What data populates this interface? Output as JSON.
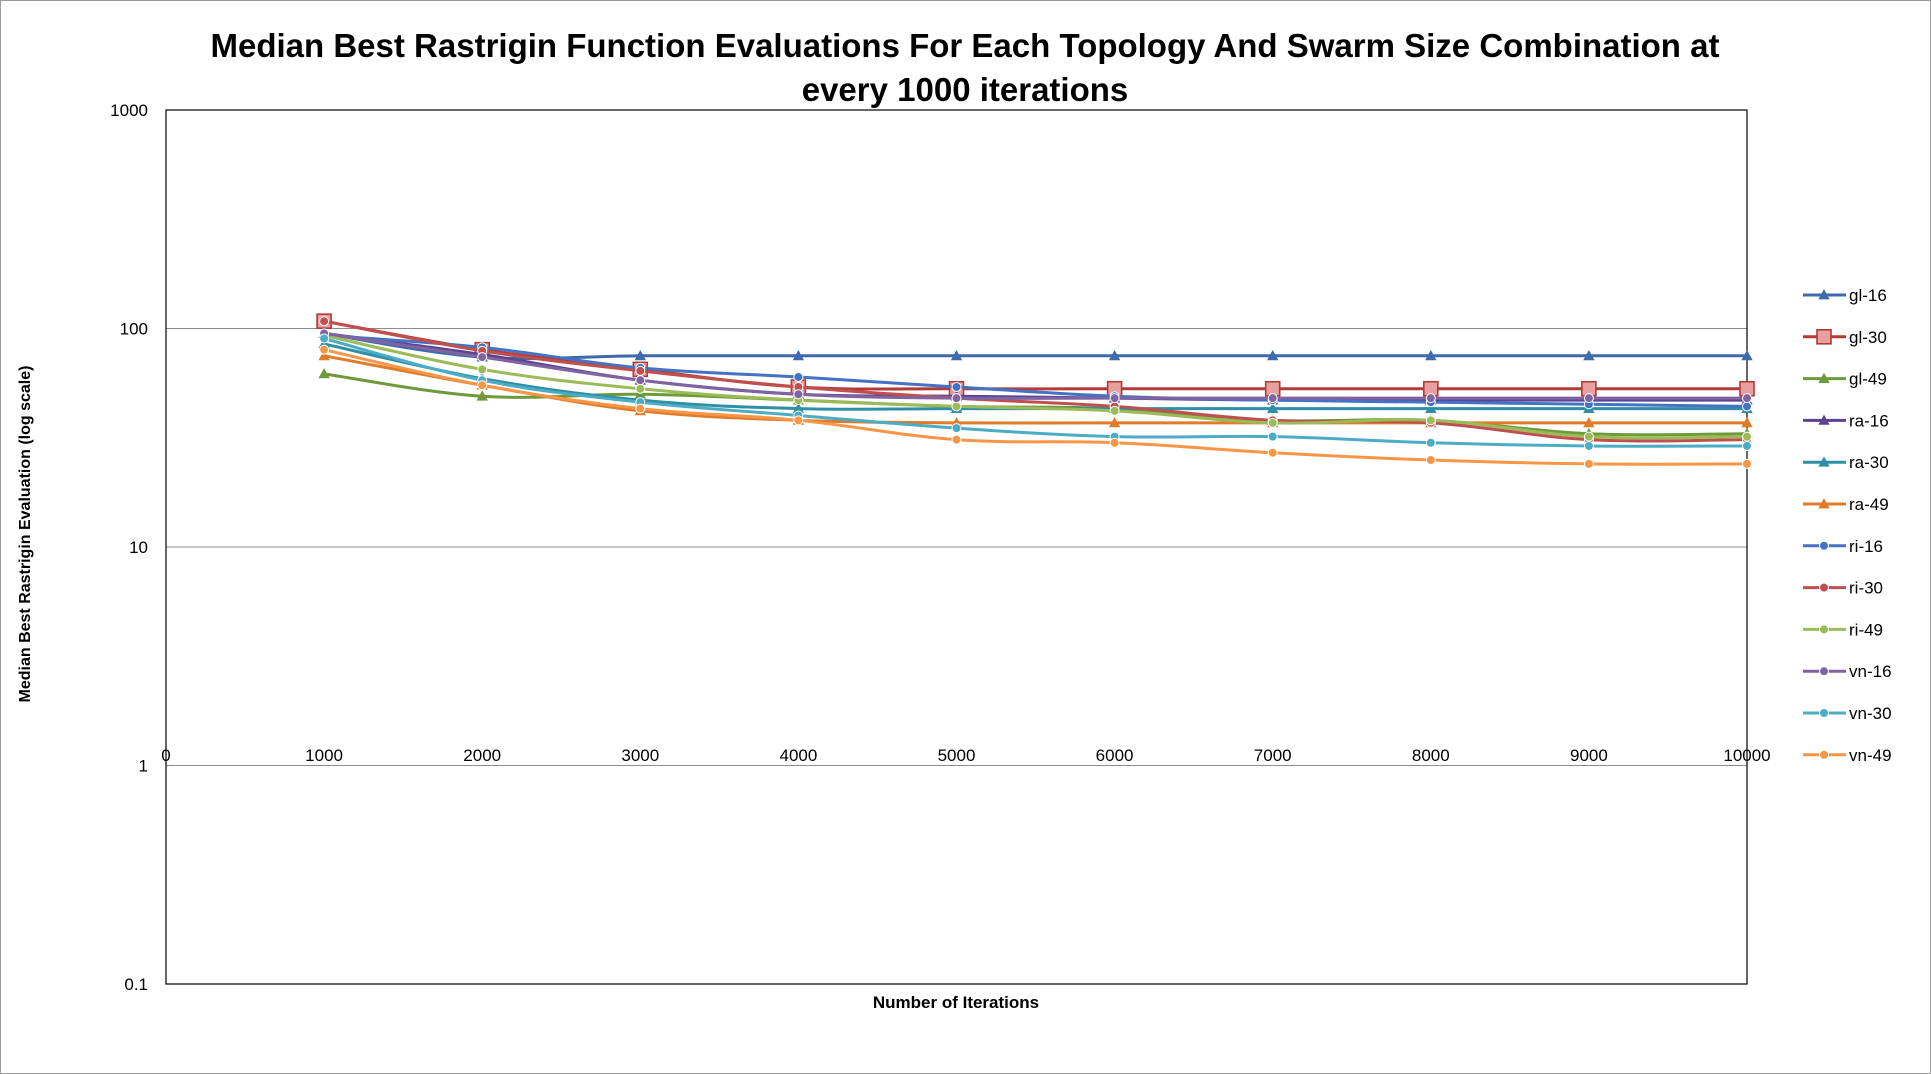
{
  "chart_data": {
    "type": "line",
    "title": "Median Best Rastrigin Function Evaluations For Each Topology And Swarm Size Combination at every 1000 iterations",
    "title_lines": [
      "Median Best Rastrigin Function Evaluations For Each Topology And Swarm Size Combination at",
      "every 1000 iterations"
    ],
    "xlabel": "Number of Iterations",
    "ylabel": "Median Best Rastrigin Evaluation (log scale)",
    "y_scale": "log",
    "ylim": [
      0.1,
      1000
    ],
    "xlim": [
      0,
      10000
    ],
    "x_ticks": [
      "0",
      "1000",
      "2000",
      "3000",
      "4000",
      "5000",
      "6000",
      "7000",
      "8000",
      "9000",
      "10000"
    ],
    "y_ticks": [
      "0.1",
      "1",
      "10",
      "100",
      "1000"
    ],
    "grid": "horizontal major",
    "legend_position": "right",
    "x": [
      1000,
      2000,
      3000,
      4000,
      5000,
      6000,
      7000,
      8000,
      9000,
      10000
    ],
    "series": [
      {
        "name": "gl-16",
        "color": "#3d6bab",
        "marker": "triangle",
        "values": [
          95,
          74,
          75,
          75,
          75,
          75,
          75,
          75,
          75,
          75
        ]
      },
      {
        "name": "gl-30",
        "color": "#b23a38",
        "marker": "square-large",
        "values": [
          108,
          80,
          65,
          54,
          53,
          53,
          53,
          53,
          53,
          53
        ]
      },
      {
        "name": "gl-49",
        "color": "#6e9a3a",
        "marker": "triangle",
        "values": [
          62,
          49,
          50,
          47,
          44,
          43,
          38,
          38,
          33,
          33
        ]
      },
      {
        "name": "ra-16",
        "color": "#5c4494",
        "marker": "triangle",
        "values": [
          95,
          76,
          58,
          50,
          49,
          48,
          47,
          47,
          47,
          47
        ]
      },
      {
        "name": "ra-30",
        "color": "#2f8fa6",
        "marker": "triangle",
        "values": [
          85,
          59,
          47,
          43,
          43,
          43,
          43,
          43,
          43,
          43
        ]
      },
      {
        "name": "ra-49",
        "color": "#e07b2a",
        "marker": "triangle",
        "values": [
          75,
          55,
          42,
          38,
          37,
          37,
          37,
          37,
          37,
          37
        ]
      },
      {
        "name": "ri-16",
        "color": "#4472c4",
        "marker": "circle",
        "values": [
          93,
          82,
          66,
          60,
          54,
          49,
          47,
          46,
          45,
          44
        ]
      },
      {
        "name": "ri-30",
        "color": "#c0504d",
        "marker": "circle",
        "values": [
          108,
          79,
          64,
          54,
          48,
          44,
          38,
          37,
          31,
          31
        ]
      },
      {
        "name": "ri-49",
        "color": "#9bbb59",
        "marker": "circle",
        "values": [
          93,
          65,
          53,
          47,
          44,
          42,
          37,
          38,
          32,
          32
        ]
      },
      {
        "name": "vn-16",
        "color": "#8064a2",
        "marker": "circle",
        "values": [
          95,
          74,
          58,
          50,
          48,
          48,
          48,
          48,
          48,
          48
        ]
      },
      {
        "name": "vn-30",
        "color": "#4bacc6",
        "marker": "circle",
        "values": [
          90,
          58,
          46,
          40,
          35,
          32,
          32,
          30,
          29,
          29
        ]
      },
      {
        "name": "vn-49",
        "color": "#f79646",
        "marker": "circle",
        "values": [
          80,
          55,
          43,
          38,
          31,
          30,
          27,
          25,
          24,
          24
        ]
      }
    ]
  }
}
